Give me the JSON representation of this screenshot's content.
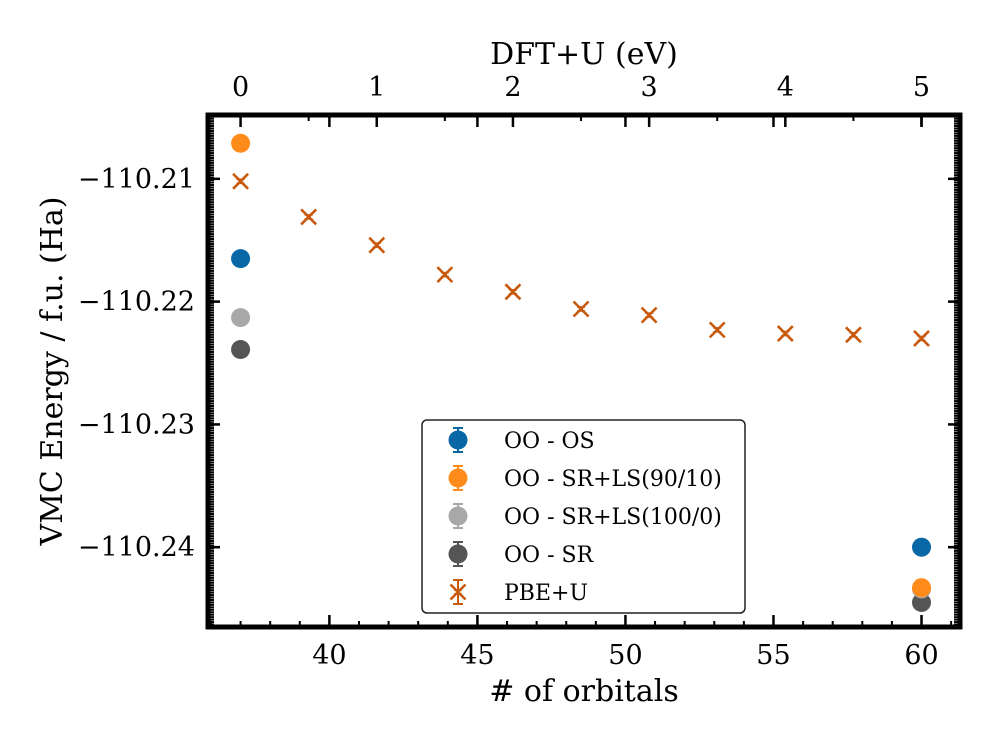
{
  "chart_data": {
    "type": "scatter",
    "xlabel": "# of orbitals",
    "x2label": "DFT+U (eV)",
    "ylabel": "VMC Energy / f.u. (Ha)",
    "xlim": [
      35.9,
      61.3
    ],
    "ylim": [
      -110.2465,
      -110.2048
    ],
    "x_ticks": [
      40,
      45,
      50,
      55,
      60
    ],
    "x_tick_labels": [
      "40",
      "45",
      "50",
      "55",
      "60"
    ],
    "x2_ticks": [
      0,
      1,
      2,
      3,
      4,
      5
    ],
    "x2_tick_labels": [
      "0",
      "1",
      "2",
      "3",
      "4",
      "5"
    ],
    "x2_to_x": {
      "x_at_0": 37,
      "x_per_unit": 4.6
    },
    "y_ticks": [
      -110.21,
      -110.22,
      -110.23,
      -110.24
    ],
    "y_tick_labels": [
      "−110.21",
      "−110.22",
      "−110.23",
      "−110.24"
    ],
    "legend_position": "lower-center",
    "series": [
      {
        "name": "OO - OS",
        "marker": "circle",
        "color": "#0868a6",
        "x": [
          37,
          60
        ],
        "y": [
          -110.2165,
          -110.24
        ]
      },
      {
        "name": "OO - SR+LS(90/10)",
        "marker": "circle",
        "color": "#ff8c1a",
        "x": [
          37,
          60
        ],
        "y": [
          -110.2071,
          -110.2433
        ]
      },
      {
        "name": "OO - SR+LS(100/0)",
        "marker": "circle",
        "color": "#a8a8a8",
        "x": [
          37,
          60
        ],
        "y": [
          -110.2213,
          -110.2434
        ]
      },
      {
        "name": "OO - SR",
        "marker": "circle",
        "color": "#555555",
        "x": [
          37,
          60
        ],
        "y": [
          -110.2239,
          -110.2445
        ]
      },
      {
        "name": "PBE+U",
        "marker": "x",
        "color": "#c85a0e",
        "x": [
          37,
          39.3,
          41.6,
          43.9,
          46.2,
          48.5,
          50.8,
          53.1,
          55.4,
          57.7,
          60
        ],
        "y": [
          -110.2102,
          -110.2131,
          -110.2154,
          -110.2178,
          -110.2192,
          -110.2206,
          -110.2211,
          -110.2223,
          -110.2226,
          -110.2227,
          -110.223
        ]
      }
    ]
  }
}
